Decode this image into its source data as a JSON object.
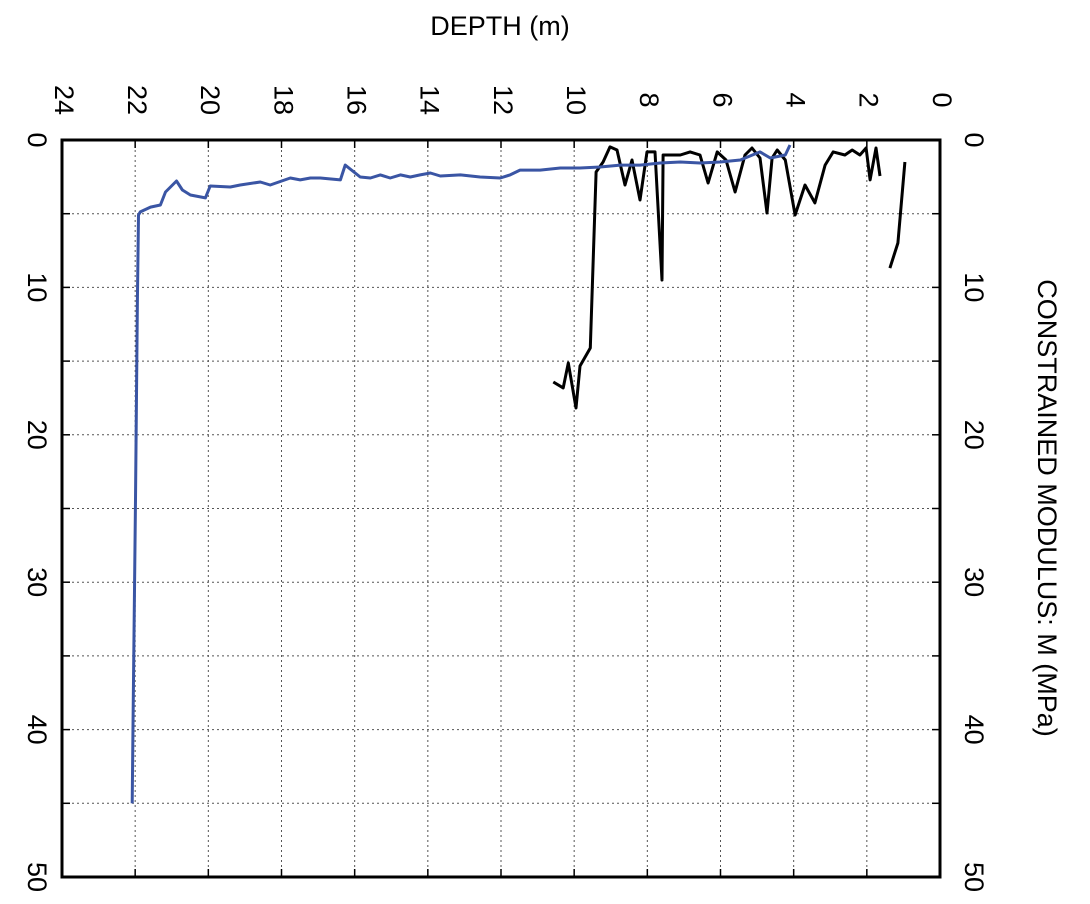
{
  "chart_data": {
    "type": "line",
    "title": "DEPTH (m)",
    "y_label": "CONSTRAINED MODULUS: M (MPa)",
    "xlim": [
      0,
      24
    ],
    "xticks": [
      0,
      2,
      4,
      6,
      8,
      10,
      12,
      14,
      16,
      18,
      20,
      22,
      24
    ],
    "ylim": [
      0,
      50
    ],
    "yticks": [
      0,
      10,
      20,
      30,
      40,
      50
    ],
    "minor_yticks": [
      5,
      15,
      25,
      35,
      45
    ],
    "grid": true,
    "series": [
      {
        "color": "#000000",
        "x": [
          10.57,
          10.3,
          10.16,
          9.95,
          9.84,
          9.56,
          9.4,
          9.21,
          9.02,
          8.83,
          8.61,
          8.42,
          8.2,
          8.01,
          7.79,
          7.6,
          7.57,
          7.1,
          6.83,
          6.56,
          6.34,
          6.09,
          5.85,
          5.6,
          5.33,
          5.14,
          4.92,
          4.73,
          4.59,
          4.45,
          4.23,
          3.96,
          3.69,
          3.42,
          3.14,
          2.92,
          2.6,
          2.4,
          2.19,
          2.02,
          1.91,
          1.75,
          1.64,
          null,
          0.96,
          1.15,
          1.37
        ],
        "values": [
          16.42,
          16.82,
          15.13,
          18.18,
          15.33,
          14.11,
          2.17,
          1.49,
          0.47,
          0.68,
          3.05,
          1.36,
          4.07,
          0.81,
          0.81,
          9.5,
          1.02,
          1.02,
          0.81,
          1.02,
          2.92,
          0.81,
          1.36,
          3.53,
          1.02,
          0.54,
          1.22,
          4.95,
          1.22,
          0.68,
          1.36,
          5.09,
          3.05,
          4.27,
          1.7,
          0.81,
          1.02,
          0.68,
          1.02,
          0.54,
          2.71,
          0.54,
          2.44,
          null,
          1.49,
          6.99,
          8.69
        ]
      },
      {
        "color": "#3a55a4",
        "x": [
          4.1,
          4.23,
          4.64,
          4.92,
          5.46,
          6.01,
          6.56,
          7.1,
          7.65,
          8.2,
          8.74,
          9.29,
          9.84,
          10.38,
          10.93,
          11.48,
          11.75,
          12.02,
          12.57,
          13.11,
          13.66,
          13.93,
          14.21,
          14.48,
          14.75,
          15.03,
          15.3,
          15.57,
          15.85,
          16.26,
          16.39,
          16.94,
          17.21,
          17.49,
          17.76,
          18.31,
          18.58,
          19.13,
          19.4,
          19.95,
          20.08,
          20.49,
          20.71,
          20.87,
          21.17,
          21.31,
          21.58,
          21.86,
          21.91,
          21.94,
          21.99,
          22.05,
          22.08
        ],
        "values": [
          0.34,
          1.02,
          1.22,
          0.81,
          1.36,
          1.49,
          1.56,
          1.49,
          1.56,
          1.7,
          1.7,
          1.83,
          1.9,
          1.9,
          2.04,
          2.04,
          2.37,
          2.58,
          2.51,
          2.37,
          2.44,
          2.24,
          2.37,
          2.51,
          2.37,
          2.58,
          2.37,
          2.58,
          2.51,
          1.7,
          2.71,
          2.58,
          2.58,
          2.71,
          2.58,
          3.05,
          2.85,
          3.05,
          3.19,
          3.12,
          3.93,
          3.73,
          3.39,
          2.78,
          3.53,
          4.41,
          4.55,
          4.88,
          5.09,
          10.86,
          24.4,
          37.9,
          45.0
        ]
      }
    ]
  }
}
